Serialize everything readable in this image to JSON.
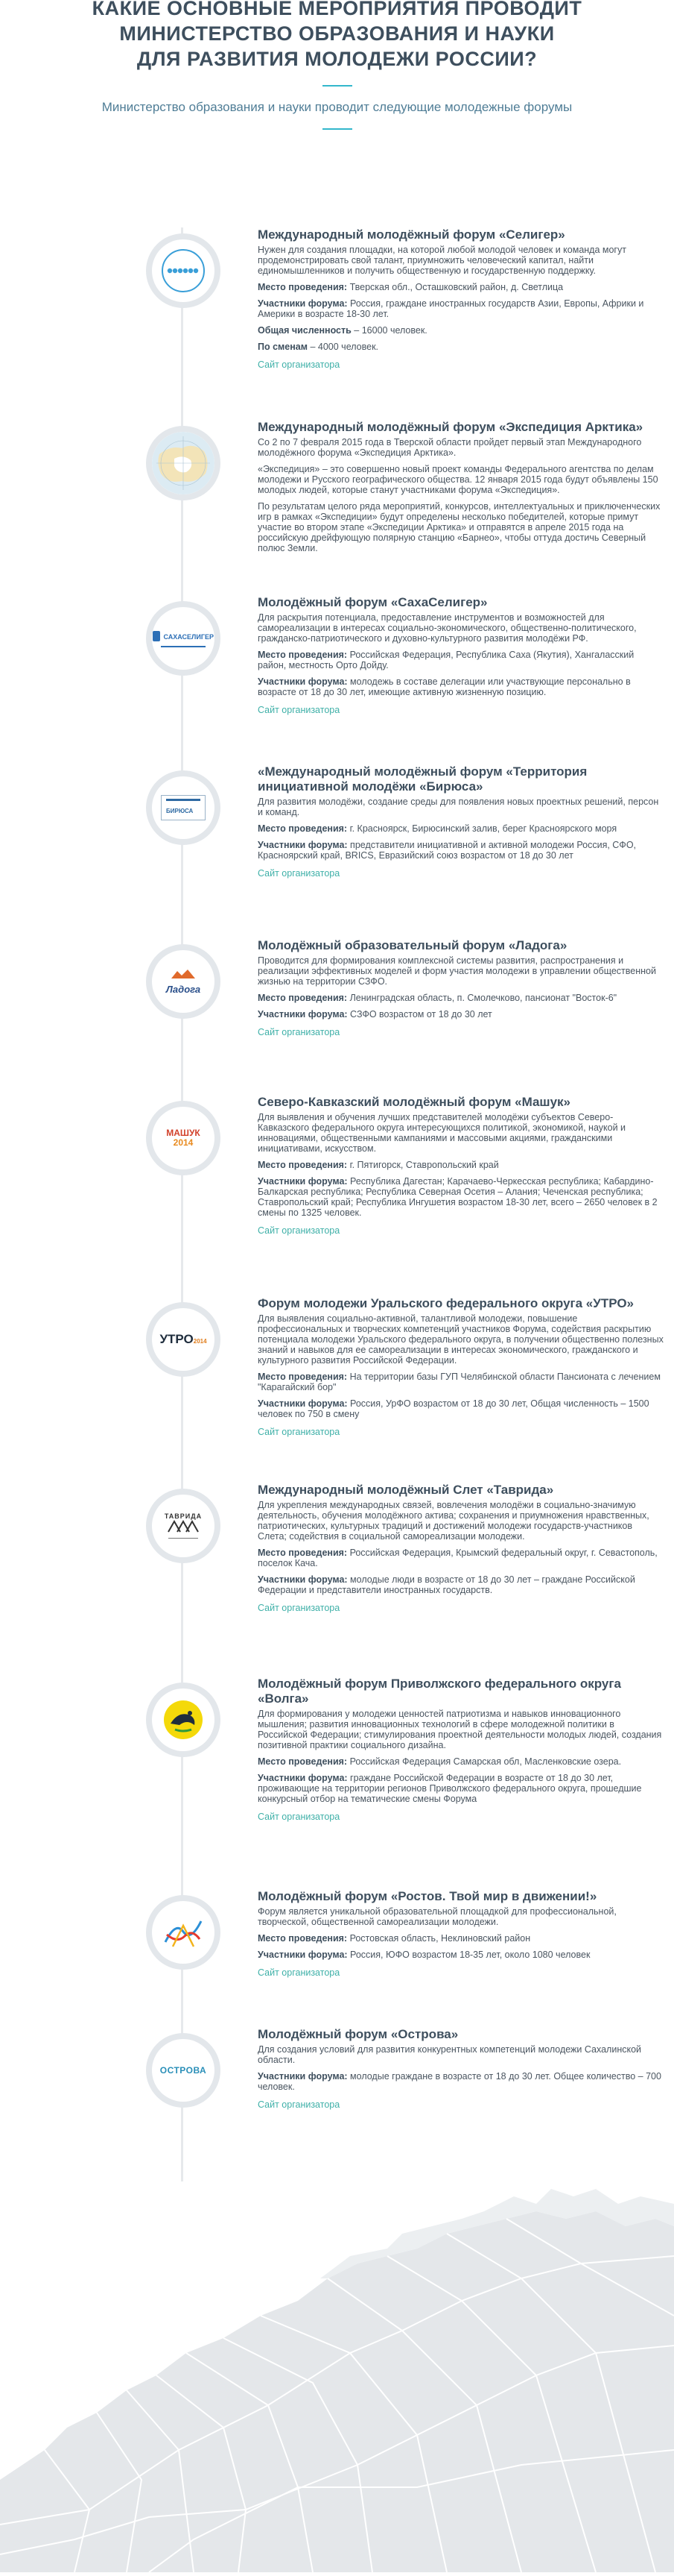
{
  "header": {
    "title": "КАКИЕ ОСНОВНЫЕ МЕРОПРИЯТИЯ ПРОВОДИТ\nМИНИСТЕРСТВО ОБРАЗОВАНИЯ И НАУКИ\nДЛЯ РАЗВИТИЯ МОЛОДЕЖИ РОССИИ?",
    "subtitle": "Министерство образования и науки проводит следующие молодежные форумы"
  },
  "link_label": "Сайт организатора",
  "entries": [
    {
      "logo": "seliger-logo",
      "title": "Международный молодёжный форум «Селигер»",
      "desc": "Нужен для создания площадки, на которой любой молодой человек и команда могут продемонстрировать свой талант, приумножить человеческий капитал, найти единомышленников и получить общественную и государственную поддержку.",
      "rows": [
        {
          "label": "Место проведения:",
          "text": " Тверская обл., Осташковский район, д. Светлица"
        },
        {
          "label": "Участники форума:",
          "text": " Россия, граждане иностранных государств Азии, Европы, Африки и Америки в возрасте 18-30 лет."
        },
        {
          "label": "Общая численность",
          "text": " – 16000 человек."
        },
        {
          "label": "По сменам",
          "text": " – 4000 человек."
        }
      ],
      "link": "Сайт организатора"
    },
    {
      "logo": "arctic-map-logo",
      "title": "Международный молодёжный форум «Экспедиция Арктика»",
      "desc": "Со 2 по 7 февраля 2015 года в Тверской области пройдет первый этап Международного молодёжного форума «Экспедиция Арктика».",
      "desc2": "«Экспедиция» – это совершенно новый проект команды Федерального агентства по делам молодежи и Русского географического общества. 12 января 2015 года будут объявлены 150 молодых людей, которые станут участниками форума «Экспедиция».",
      "desc3": "По результатам целого ряда мероприятий, конкурсов, интеллектуальных и приключенческих игр в рамках «Экспедиции» будут определены несколько победителей, которые примут участие во втором этапе «Экспедиции Арктика» и отправятся в апреле 2015 года на российскую дрейфующую полярную станцию «Барнео», чтобы оттуда достичь Северный полюс Земли.",
      "rows": [],
      "link": ""
    },
    {
      "logo": "sakhaseliger-logo",
      "title": "Молодёжный форум «СахаСелигер»",
      "desc": "Для раскрытия потенциала, предоставление инструментов и возможностей для самореализации в интересах социально-экономического, общественно-политического, гражданско-патриотического и духовно-культурного развития молодёжи РФ.",
      "rows": [
        {
          "label": "Место проведения:",
          "text": " Российская Федерация, Республика Саха (Якутия), Хангаласский район, местность Орто Дойду."
        },
        {
          "label": "Участники форума:",
          "text": " молодежь в составе делегации или участвующие персонально в возрасте от 18 до 30 лет, имеющие активную жизненную позицию."
        }
      ],
      "link": "Сайт организатора"
    },
    {
      "logo": "biryusa-logo",
      "title": "«Международный молодёжный форум «Территория инициативной молодёжи «Бирюса»",
      "desc": "Для развития молодёжи, создание среды для появления новых проектных решений, персон и команд.",
      "rows": [
        {
          "label": "Место проведения:",
          "text": " г. Красноярск, Бирюсинский залив, берег Красноярского моря"
        },
        {
          "label": "Участники форума:",
          "text": " представители инициативной и активной молодежи Россия, СФО, Красноярский край, BRICS, Евразийский союз возрастом от 18 до 30 лет"
        }
      ],
      "link": "Сайт организатора"
    },
    {
      "logo": "ladoga-logo",
      "title": "Молодёжный образовательный форум «Ладога»",
      "desc": "Проводится для формирования комплексной системы развития, распространения и реализации эффективных моделей и форм участия молодежи в управлении общественной жизнью на территории СЗФО.",
      "rows": [
        {
          "label": "Место проведения:",
          "text": " Ленинградская область, п. Смолечково, пансионат \"Восток-6\""
        },
        {
          "label": "Участники форума:",
          "text": " СЗФО возрастом от 18 до 30 лет"
        }
      ],
      "link": "Сайт организатора"
    },
    {
      "logo": "mashuk-logo",
      "title": "Северо-Кавказский молодёжный форум «Машук»",
      "desc": "Для выявления и обучения лучших представителей молодёжи субъектов Северо-Кавказского федерального округа интересующихся политикой, экономикой, наукой и инновациями, общественными кампаниями и массовыми акциями, гражданскими инициативами, искусством.",
      "rows": [
        {
          "label": "Место проведения:",
          "text": " г. Пятигорск, Ставропольский край"
        },
        {
          "label": "Участники форума:",
          "text": " Республика Дагестан; Карачаево-Черкесская республика; Кабардино-Балкарская республика; Республика Северная Осетия – Алания; Чеченская республика; Ставропольский край; Республика Ингушетия возрастом 18-30 лет, всего – 2650 человек в 2 смены по 1325 человек."
        }
      ],
      "link": "Сайт организатора"
    },
    {
      "logo": "utro-logo",
      "title": "Форум молодежи Уральского федерального округа «УТРО»",
      "desc": "Для выявления социально-активной, талантливой молодежи, повышение профессиональных и творческих компетенций участников Форума, содействия раскрытию потенциала молодежи Уральского федерального округа, в получении общественно полезных знаний и навыков для ее самореализации в интересах экономического, гражданского и культурного развития Российской Федерации.",
      "rows": [
        {
          "label": "Место проведения:",
          "text": " На территории базы ГУП Челябинской области Пансионата с лечением \"Карагайский бор\""
        },
        {
          "label": "Участники форума:",
          "text": " Россия, УрФО возрастом от 18 до 30 лет, Общая численность – 1500 человек по 750 в смену"
        }
      ],
      "link": "Сайт организатора"
    },
    {
      "logo": "tavrida-logo",
      "title": "Международный молодёжный Слет «Таврида»",
      "desc": "Для укрепления международных связей, вовлечения молодёжи в социально-значимую деятельность, обучения молодёжного актива; сохранения и приумножения нравственных, патриотических, культурных традиций и достижений молодежи государств-участников Слета; содействия в социальной самореализации молодежи.",
      "rows": [
        {
          "label": "Место проведения:",
          "text": " Российская Федерация, Крымский федеральный округ, г. Севастополь, поселок Кача."
        },
        {
          "label": "Участники форума:",
          "text": " молодые люди в возрасте от 18 до 30 лет – граждане Российской Федерации и представители иностранных государств."
        }
      ],
      "link": "Сайт организатора"
    },
    {
      "logo": "volga-logo",
      "title": "Молодёжный форум Приволжского федерального округа «Волга»",
      "desc": "Для формирования у молодежи ценностей патриотизма и навыков инновационного мышления; развития инновационных технологий в сфере молодежной политики в Российской Федерации; стимулирования проектной деятельности молодых людей, создания позитивной практики социального дизайна.",
      "rows": [
        {
          "label": "Место проведения:",
          "text": " Российская Федерация Самарская обл, Масленковские озера."
        },
        {
          "label": "Участники форума:",
          "text": " граждане Российской Федерации в возрасте от 18 до 30 лет, проживающие на территории регионов Приволжского федерального округа, прошедшие конкурсный отбор на тематические смены Форума"
        }
      ],
      "link": "Сайт организатора"
    },
    {
      "logo": "rostov-logo",
      "title": "Молодёжный форум «Ростов. Твой мир в движении!»",
      "desc": "Форум является уникальной образовательной площадкой для профессиональной, творческой, общественной самореализации молодежи.",
      "rows": [
        {
          "label": "Место проведения:",
          "text": " Ростовская область, Неклиновский район"
        },
        {
          "label": "Участники форума:",
          "text": " Россия, ЮФО возрастом 18-35 лет, около 1080 человек"
        }
      ],
      "link": "Сайт организатора"
    },
    {
      "logo": "ostrova-logo",
      "title": "Молодёжный форум «Острова»",
      "desc": "Для создания условий для развития конкурентных компетенций молодежи Сахалинской области.",
      "rows": [
        {
          "label": "Участники форума:",
          "text": " молодые граждане в возрасте от 18 до 30 лет. Общее количество – 700 человек."
        }
      ],
      "link": "Сайт организатора"
    }
  ],
  "logos": {
    "sakha_text": "САХАСЕЛИГЕР",
    "biryusa_text": "БИРЮСА",
    "ladoga_text": "Ладога",
    "mashuk_text": "МАШУК",
    "mashuk_year": "2014",
    "utro_text": "УТРО",
    "utro_year": "2014",
    "tavrida_text": "ТАВРИДА",
    "ostrova_text": "ОСТРОВА"
  },
  "colors": {
    "title": "#3e4f5e",
    "accent": "#33b7cc",
    "link": "#3fb0a8",
    "timeline": "#e6e9ec",
    "map": "#e4e7ea"
  }
}
